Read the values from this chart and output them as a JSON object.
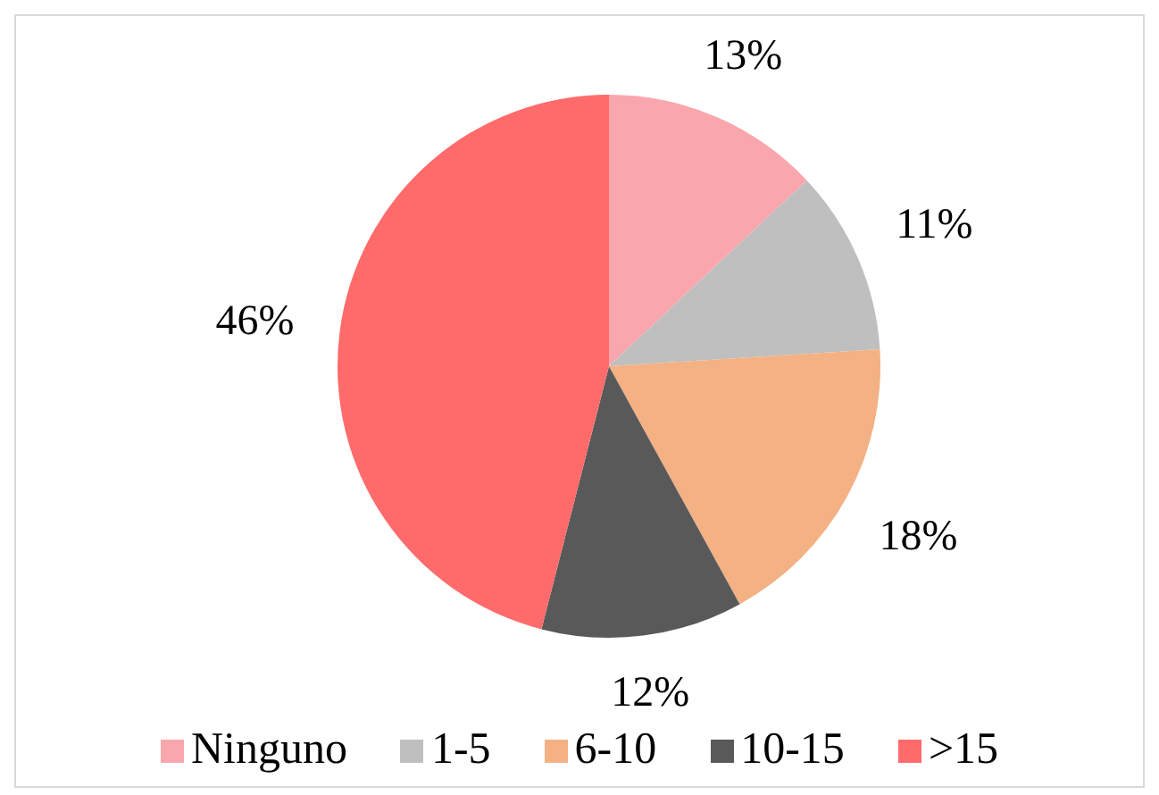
{
  "chart_data": {
    "type": "pie",
    "categories": [
      "Ninguno",
      "1-5",
      "6-10",
      "10-15",
      ">15"
    ],
    "values": [
      13,
      11,
      18,
      12,
      46
    ],
    "colors": [
      "#f9a7ad",
      "#bfbfbf",
      "#f4b183",
      "#595959",
      "#ff6b6b"
    ],
    "value_labels": [
      "13%",
      "11%",
      "18%",
      "12%",
      "46%"
    ],
    "legend": "bottom"
  }
}
